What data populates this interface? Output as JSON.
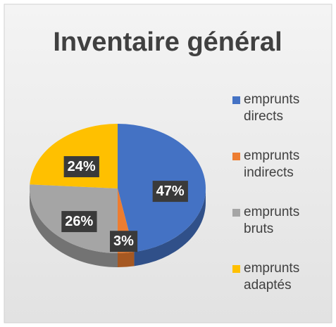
{
  "chart_data": {
    "type": "pie",
    "title": "Inventaire général",
    "categories": [
      "emprunts directs",
      "emprunts indirects",
      "emprunts bruts",
      "emprunts adaptés"
    ],
    "values": [
      47,
      3,
      26,
      24
    ],
    "value_labels": [
      "47%",
      "3%",
      "26%",
      "24%"
    ],
    "colors": [
      "#4472c4",
      "#ed7d31",
      "#a5a5a5",
      "#ffc000"
    ],
    "legend": "right"
  }
}
